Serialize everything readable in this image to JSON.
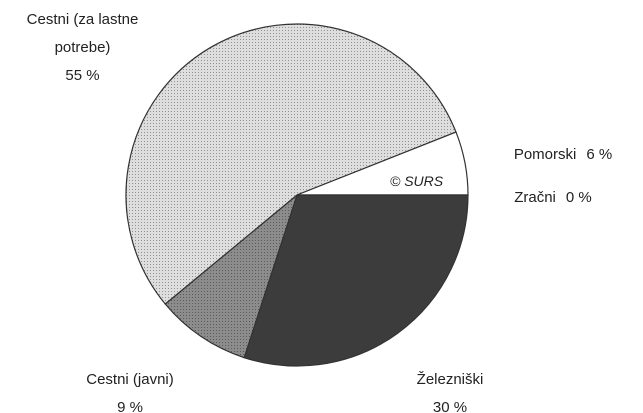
{
  "chart_data": {
    "type": "pie",
    "categories": [
      "Železniški",
      "Cestni (javni)",
      "Cestni (za lastne potrebe)",
      "Pomorski",
      "Zračni"
    ],
    "values": [
      30,
      9,
      55,
      6,
      0
    ],
    "value_labels": [
      "30 %",
      "9 %",
      "55 %",
      "6 %",
      "0 %"
    ],
    "colors": [
      "#3c3c3c",
      "#8c8c8c",
      "#dedede",
      "#ffffff",
      "#ffffff"
    ],
    "annotation": "© SURS"
  }
}
